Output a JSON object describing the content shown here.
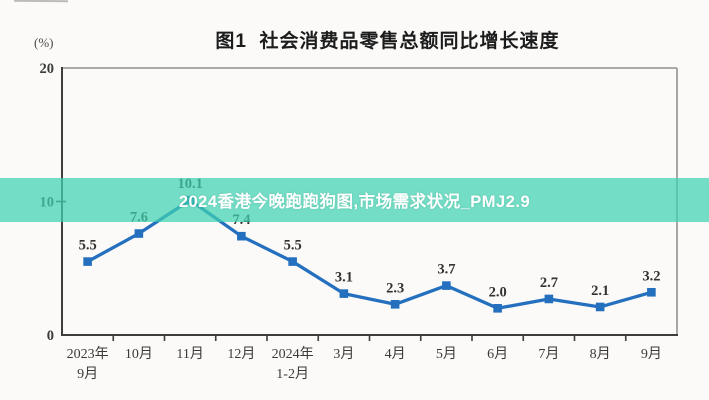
{
  "banner": {
    "text": "2024香港今晚跑跑狗图,市场需求状况_PMJ2.9",
    "background": "rgba(62, 209, 178, 0.72)",
    "text_color": "#ffffff"
  },
  "colors": {
    "page_background": "#fbfaf8",
    "line": "#2470bf",
    "axis_dark": "#3d3d3d",
    "axis_light": "#9e9e9e",
    "tick_label": "#3a3a3a",
    "data_label": "#333333"
  },
  "chart_data": {
    "type": "line",
    "title": "图1  社会消费品零售总额同比增长速度",
    "ylabel_unit": "(%)",
    "categories": [
      "2023年9月",
      "10月",
      "11月",
      "12月",
      "2024年1-2月",
      "3月",
      "4月",
      "5月",
      "6月",
      "7月",
      "8月",
      "9月"
    ],
    "category_lines": [
      [
        "2023年",
        "9月"
      ],
      [
        "10月"
      ],
      [
        "11月"
      ],
      [
        "12月"
      ],
      [
        "2024年",
        "1-2月"
      ],
      [
        "3月"
      ],
      [
        "4月"
      ],
      [
        "5月"
      ],
      [
        "6月"
      ],
      [
        "7月"
      ],
      [
        "8月"
      ],
      [
        "9月"
      ]
    ],
    "values": [
      5.5,
      7.6,
      10.1,
      7.4,
      5.5,
      3.1,
      2.3,
      3.7,
      2.0,
      2.7,
      2.1,
      3.2
    ],
    "data_labels": [
      "5.5",
      "7.6",
      "10.1",
      "7.4",
      "5.5",
      "3.1",
      "2.3",
      "3.7",
      "2.0",
      "2.7",
      "2.1",
      "3.2"
    ],
    "xlabel": "",
    "ylabel": "",
    "ylim": [
      0,
      20
    ],
    "yticks": [
      0,
      10,
      20
    ],
    "grid": false,
    "legend": null,
    "marker": "square"
  }
}
